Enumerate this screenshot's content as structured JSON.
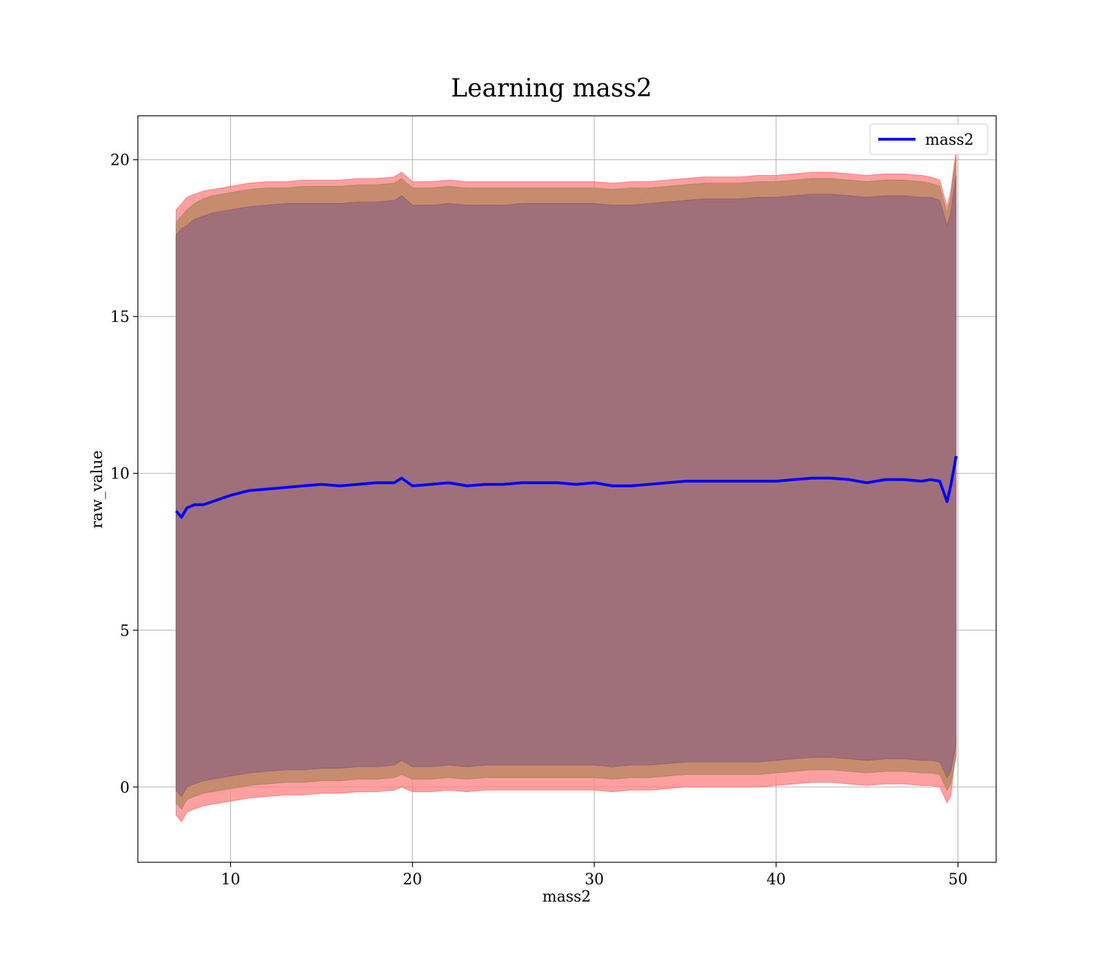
{
  "chart_data": {
    "type": "line",
    "title": "Learning mass2",
    "xlabel": "mass2",
    "ylabel": "raw_value",
    "xlim": [
      4.9,
      52.1
    ],
    "ylim": [
      -2.4,
      21.4
    ],
    "xticks": [
      10,
      20,
      30,
      40,
      50
    ],
    "yticks": [
      0,
      5,
      10,
      15,
      20
    ],
    "grid": true,
    "legend": {
      "placement": "top-right",
      "entries": [
        "mass2"
      ]
    },
    "colors": {
      "mean_line": "#0000ff",
      "outer_band": "#ff7f7f",
      "middle_band": "#c48b6a",
      "inner_band": "#a0707a",
      "grid": "#b0b0b0"
    },
    "series": [
      {
        "name": "mass2",
        "x": [
          7.0,
          7.3,
          7.6,
          8.0,
          8.5,
          9.0,
          9.5,
          10.0,
          11.0,
          12.0,
          13.0,
          14.0,
          15.0,
          16.0,
          17.0,
          18.0,
          19.0,
          19.4,
          20.0,
          21.0,
          22.0,
          23.0,
          24.0,
          25.0,
          26.0,
          27.0,
          28.0,
          29.0,
          30.0,
          31.0,
          32.0,
          33.0,
          34.0,
          35.0,
          36.0,
          37.0,
          38.0,
          39.0,
          40.0,
          41.0,
          42.0,
          43.0,
          44.0,
          45.0,
          46.0,
          47.0,
          48.0,
          48.5,
          49.0,
          49.4,
          49.6,
          49.9
        ],
        "y": [
          8.8,
          8.6,
          8.9,
          9.0,
          9.0,
          9.1,
          9.2,
          9.3,
          9.45,
          9.5,
          9.55,
          9.6,
          9.65,
          9.6,
          9.65,
          9.7,
          9.7,
          9.85,
          9.6,
          9.65,
          9.7,
          9.6,
          9.65,
          9.65,
          9.7,
          9.7,
          9.7,
          9.65,
          9.7,
          9.6,
          9.6,
          9.65,
          9.7,
          9.75,
          9.75,
          9.75,
          9.75,
          9.75,
          9.75,
          9.8,
          9.85,
          9.85,
          9.8,
          9.7,
          9.8,
          9.8,
          9.75,
          9.8,
          9.75,
          9.1,
          9.6,
          10.55
        ],
        "band_outer_upper": [
          18.4,
          18.6,
          18.8,
          18.9,
          19.0,
          19.05,
          19.1,
          19.15,
          19.25,
          19.3,
          19.3,
          19.35,
          19.35,
          19.35,
          19.4,
          19.4,
          19.45,
          19.6,
          19.3,
          19.3,
          19.35,
          19.3,
          19.3,
          19.3,
          19.3,
          19.3,
          19.3,
          19.3,
          19.3,
          19.25,
          19.3,
          19.3,
          19.35,
          19.4,
          19.45,
          19.45,
          19.45,
          19.5,
          19.5,
          19.55,
          19.6,
          19.6,
          19.55,
          19.5,
          19.55,
          19.55,
          19.5,
          19.45,
          19.35,
          18.5,
          19.0,
          20.3
        ],
        "band_outer_lower": [
          -0.9,
          -1.1,
          -0.8,
          -0.7,
          -0.6,
          -0.55,
          -0.5,
          -0.45,
          -0.35,
          -0.3,
          -0.25,
          -0.25,
          -0.2,
          -0.2,
          -0.15,
          -0.15,
          -0.1,
          0.0,
          -0.15,
          -0.15,
          -0.1,
          -0.15,
          -0.1,
          -0.1,
          -0.1,
          -0.1,
          -0.1,
          -0.1,
          -0.1,
          -0.15,
          -0.1,
          -0.1,
          -0.05,
          0.0,
          0.0,
          0.0,
          0.0,
          0.0,
          0.05,
          0.1,
          0.15,
          0.15,
          0.1,
          0.05,
          0.1,
          0.1,
          0.05,
          0.05,
          0.0,
          -0.5,
          -0.3,
          1.2
        ],
        "band_middle_upper": [
          18.0,
          18.2,
          18.4,
          18.6,
          18.75,
          18.85,
          18.9,
          18.95,
          19.05,
          19.1,
          19.1,
          19.15,
          19.15,
          19.15,
          19.2,
          19.2,
          19.25,
          19.4,
          19.1,
          19.1,
          19.15,
          19.1,
          19.1,
          19.1,
          19.1,
          19.1,
          19.1,
          19.1,
          19.1,
          19.05,
          19.1,
          19.1,
          19.15,
          19.2,
          19.25,
          19.25,
          19.25,
          19.3,
          19.3,
          19.35,
          19.4,
          19.4,
          19.35,
          19.3,
          19.35,
          19.35,
          19.3,
          19.25,
          19.15,
          18.3,
          18.8,
          20.1
        ],
        "band_middle_lower": [
          -0.5,
          -0.7,
          -0.4,
          -0.3,
          -0.2,
          -0.15,
          -0.1,
          -0.05,
          0.05,
          0.1,
          0.15,
          0.15,
          0.2,
          0.2,
          0.25,
          0.25,
          0.3,
          0.4,
          0.25,
          0.25,
          0.3,
          0.25,
          0.3,
          0.3,
          0.3,
          0.3,
          0.3,
          0.3,
          0.3,
          0.25,
          0.3,
          0.3,
          0.35,
          0.4,
          0.4,
          0.4,
          0.4,
          0.4,
          0.45,
          0.5,
          0.55,
          0.55,
          0.5,
          0.45,
          0.5,
          0.5,
          0.45,
          0.45,
          0.4,
          -0.1,
          0.1,
          1.0
        ],
        "band_inner_upper": [
          17.6,
          17.8,
          17.9,
          18.1,
          18.2,
          18.3,
          18.35,
          18.4,
          18.5,
          18.55,
          18.6,
          18.6,
          18.6,
          18.6,
          18.65,
          18.65,
          18.7,
          18.85,
          18.55,
          18.55,
          18.6,
          18.55,
          18.55,
          18.55,
          18.6,
          18.6,
          18.6,
          18.6,
          18.6,
          18.55,
          18.55,
          18.6,
          18.65,
          18.7,
          18.75,
          18.75,
          18.75,
          18.8,
          18.8,
          18.85,
          18.9,
          18.9,
          18.85,
          18.8,
          18.85,
          18.85,
          18.8,
          18.8,
          18.7,
          17.9,
          18.3,
          19.5
        ],
        "band_inner_lower": [
          -0.1,
          -0.3,
          0.0,
          0.1,
          0.2,
          0.25,
          0.3,
          0.35,
          0.45,
          0.5,
          0.55,
          0.55,
          0.6,
          0.6,
          0.65,
          0.65,
          0.7,
          0.85,
          0.65,
          0.65,
          0.7,
          0.65,
          0.7,
          0.7,
          0.7,
          0.7,
          0.7,
          0.7,
          0.7,
          0.65,
          0.7,
          0.7,
          0.75,
          0.8,
          0.8,
          0.8,
          0.8,
          0.8,
          0.85,
          0.9,
          0.95,
          0.95,
          0.9,
          0.85,
          0.9,
          0.9,
          0.85,
          0.85,
          0.8,
          0.3,
          0.5,
          1.4
        ]
      }
    ]
  }
}
